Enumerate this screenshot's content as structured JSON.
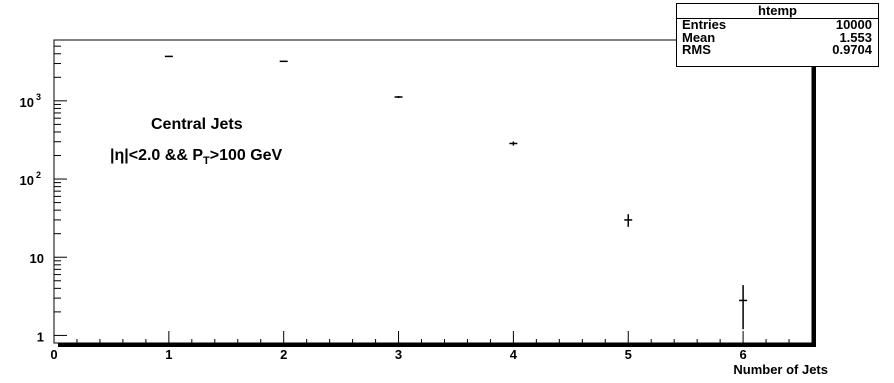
{
  "chart_data": {
    "type": "scatter",
    "title": "",
    "xlabel": "Number of Jets",
    "ylabel": "",
    "yscale": "log",
    "xlim": [
      0,
      6.6
    ],
    "ylim": [
      0.8,
      6000
    ],
    "x_ticks": [
      "0",
      "1",
      "2",
      "3",
      "4",
      "5",
      "6"
    ],
    "y_ticks": [
      {
        "value": 1,
        "base": "1",
        "exp": ""
      },
      {
        "value": 10,
        "base": "10",
        "exp": ""
      },
      {
        "value": 100,
        "base": "10",
        "exp": "2"
      },
      {
        "value": 1000,
        "base": "10",
        "exp": "3"
      }
    ],
    "series": [
      {
        "x": [
          1,
          2,
          3,
          4,
          5,
          6
        ],
        "y": [
          3700,
          3200,
          1120,
          285,
          30,
          2.8
        ],
        "y_err_low": [
          61,
          57,
          33,
          17,
          5.5,
          1.6
        ],
        "y_err_high": [
          61,
          57,
          33,
          17,
          5.5,
          1.6
        ]
      }
    ],
    "annotations": {
      "line1": "Central Jets",
      "line2_pre": "|η|<2.0 && P",
      "line2_sub": "T",
      "line2_post": ">100 GeV"
    },
    "stats_box": {
      "title": "htemp",
      "rows": [
        {
          "label": "Entries",
          "value": "10000"
        },
        {
          "label": "Mean",
          "value": "1.553"
        },
        {
          "label": "RMS",
          "value": "0.9704"
        }
      ],
      "placement": "top-right"
    }
  }
}
